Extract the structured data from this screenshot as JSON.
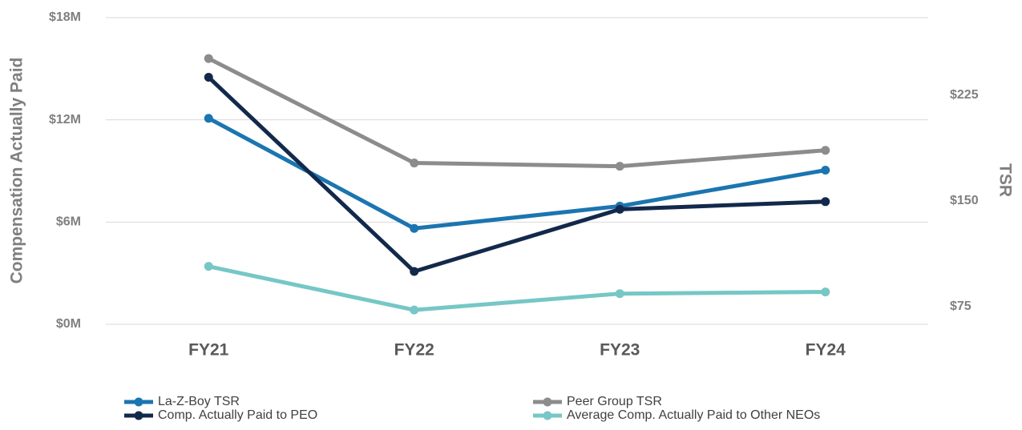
{
  "chart_data": {
    "type": "line",
    "y_label": "Compensation Actually Paid",
    "y2_label": "TSR",
    "categories": [
      "FY21",
      "FY22",
      "FY23",
      "FY24"
    ],
    "ylim": [
      0,
      18
    ],
    "yticks": [
      {
        "value": 0,
        "label": "$0M"
      },
      {
        "value": 6,
        "label": "$6M"
      },
      {
        "value": 12,
        "label": "$12M"
      },
      {
        "value": 18,
        "label": "$18M"
      }
    ],
    "y2lim": [
      62.5,
      280
    ],
    "y2ticks": [
      {
        "value": 75,
        "label": "$75"
      },
      {
        "value": 150,
        "label": "$150"
      },
      {
        "value": 225,
        "label": "$225"
      }
    ],
    "grid": true,
    "legend": "bottom",
    "series": [
      {
        "name": "La-Z-Boy TSR",
        "color": "#1b75b0",
        "axis": "y2",
        "values": [
          208.6,
          130.5,
          146.3,
          171.8
        ]
      },
      {
        "name": "Peer Group TSR",
        "color": "#8c8c8c",
        "axis": "y2",
        "values": [
          251,
          176.9,
          174.6,
          185.9
        ]
      },
      {
        "name": "Comp. Actually Paid to PEO",
        "color": "#13294b",
        "values": [
          14.5,
          3.1,
          6.75,
          7.2
        ]
      },
      {
        "name": "Average Comp. Actually Paid to Other NEOs",
        "color": "#76c7c6",
        "values": [
          3.4,
          0.84,
          1.8,
          1.9
        ]
      }
    ]
  }
}
